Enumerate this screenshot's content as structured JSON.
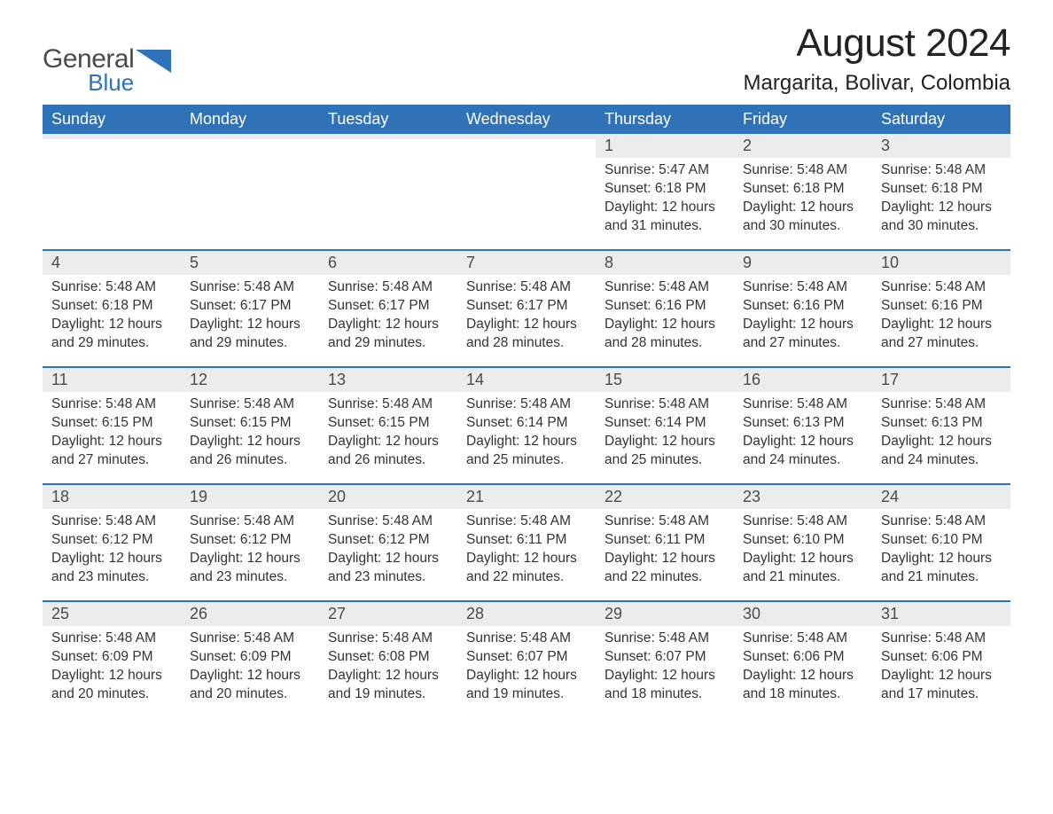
{
  "logo": {
    "general": "General",
    "blue": "Blue",
    "icon_color": "#2f72b7"
  },
  "title": {
    "month": "August 2024",
    "location": "Margarita, Bolivar, Colombia"
  },
  "colors": {
    "header_bg": "#2f72b7",
    "header_text": "#ffffff",
    "daynum_bg": "#ececec",
    "border": "#2f72b7",
    "body_text": "#333333"
  },
  "fonts": {
    "title_size": 44,
    "location_size": 24,
    "header_size": 18,
    "body_size": 15.5
  },
  "day_headers": [
    "Sunday",
    "Monday",
    "Tuesday",
    "Wednesday",
    "Thursday",
    "Friday",
    "Saturday"
  ],
  "weeks": [
    [
      {
        "num": "",
        "sunrise": "",
        "sunset": "",
        "daylight1": "",
        "daylight2": ""
      },
      {
        "num": "",
        "sunrise": "",
        "sunset": "",
        "daylight1": "",
        "daylight2": ""
      },
      {
        "num": "",
        "sunrise": "",
        "sunset": "",
        "daylight1": "",
        "daylight2": ""
      },
      {
        "num": "",
        "sunrise": "",
        "sunset": "",
        "daylight1": "",
        "daylight2": ""
      },
      {
        "num": "1",
        "sunrise": "Sunrise: 5:47 AM",
        "sunset": "Sunset: 6:18 PM",
        "daylight1": "Daylight: 12 hours",
        "daylight2": "and 31 minutes."
      },
      {
        "num": "2",
        "sunrise": "Sunrise: 5:48 AM",
        "sunset": "Sunset: 6:18 PM",
        "daylight1": "Daylight: 12 hours",
        "daylight2": "and 30 minutes."
      },
      {
        "num": "3",
        "sunrise": "Sunrise: 5:48 AM",
        "sunset": "Sunset: 6:18 PM",
        "daylight1": "Daylight: 12 hours",
        "daylight2": "and 30 minutes."
      }
    ],
    [
      {
        "num": "4",
        "sunrise": "Sunrise: 5:48 AM",
        "sunset": "Sunset: 6:18 PM",
        "daylight1": "Daylight: 12 hours",
        "daylight2": "and 29 minutes."
      },
      {
        "num": "5",
        "sunrise": "Sunrise: 5:48 AM",
        "sunset": "Sunset: 6:17 PM",
        "daylight1": "Daylight: 12 hours",
        "daylight2": "and 29 minutes."
      },
      {
        "num": "6",
        "sunrise": "Sunrise: 5:48 AM",
        "sunset": "Sunset: 6:17 PM",
        "daylight1": "Daylight: 12 hours",
        "daylight2": "and 29 minutes."
      },
      {
        "num": "7",
        "sunrise": "Sunrise: 5:48 AM",
        "sunset": "Sunset: 6:17 PM",
        "daylight1": "Daylight: 12 hours",
        "daylight2": "and 28 minutes."
      },
      {
        "num": "8",
        "sunrise": "Sunrise: 5:48 AM",
        "sunset": "Sunset: 6:16 PM",
        "daylight1": "Daylight: 12 hours",
        "daylight2": "and 28 minutes."
      },
      {
        "num": "9",
        "sunrise": "Sunrise: 5:48 AM",
        "sunset": "Sunset: 6:16 PM",
        "daylight1": "Daylight: 12 hours",
        "daylight2": "and 27 minutes."
      },
      {
        "num": "10",
        "sunrise": "Sunrise: 5:48 AM",
        "sunset": "Sunset: 6:16 PM",
        "daylight1": "Daylight: 12 hours",
        "daylight2": "and 27 minutes."
      }
    ],
    [
      {
        "num": "11",
        "sunrise": "Sunrise: 5:48 AM",
        "sunset": "Sunset: 6:15 PM",
        "daylight1": "Daylight: 12 hours",
        "daylight2": "and 27 minutes."
      },
      {
        "num": "12",
        "sunrise": "Sunrise: 5:48 AM",
        "sunset": "Sunset: 6:15 PM",
        "daylight1": "Daylight: 12 hours",
        "daylight2": "and 26 minutes."
      },
      {
        "num": "13",
        "sunrise": "Sunrise: 5:48 AM",
        "sunset": "Sunset: 6:15 PM",
        "daylight1": "Daylight: 12 hours",
        "daylight2": "and 26 minutes."
      },
      {
        "num": "14",
        "sunrise": "Sunrise: 5:48 AM",
        "sunset": "Sunset: 6:14 PM",
        "daylight1": "Daylight: 12 hours",
        "daylight2": "and 25 minutes."
      },
      {
        "num": "15",
        "sunrise": "Sunrise: 5:48 AM",
        "sunset": "Sunset: 6:14 PM",
        "daylight1": "Daylight: 12 hours",
        "daylight2": "and 25 minutes."
      },
      {
        "num": "16",
        "sunrise": "Sunrise: 5:48 AM",
        "sunset": "Sunset: 6:13 PM",
        "daylight1": "Daylight: 12 hours",
        "daylight2": "and 24 minutes."
      },
      {
        "num": "17",
        "sunrise": "Sunrise: 5:48 AM",
        "sunset": "Sunset: 6:13 PM",
        "daylight1": "Daylight: 12 hours",
        "daylight2": "and 24 minutes."
      }
    ],
    [
      {
        "num": "18",
        "sunrise": "Sunrise: 5:48 AM",
        "sunset": "Sunset: 6:12 PM",
        "daylight1": "Daylight: 12 hours",
        "daylight2": "and 23 minutes."
      },
      {
        "num": "19",
        "sunrise": "Sunrise: 5:48 AM",
        "sunset": "Sunset: 6:12 PM",
        "daylight1": "Daylight: 12 hours",
        "daylight2": "and 23 minutes."
      },
      {
        "num": "20",
        "sunrise": "Sunrise: 5:48 AM",
        "sunset": "Sunset: 6:12 PM",
        "daylight1": "Daylight: 12 hours",
        "daylight2": "and 23 minutes."
      },
      {
        "num": "21",
        "sunrise": "Sunrise: 5:48 AM",
        "sunset": "Sunset: 6:11 PM",
        "daylight1": "Daylight: 12 hours",
        "daylight2": "and 22 minutes."
      },
      {
        "num": "22",
        "sunrise": "Sunrise: 5:48 AM",
        "sunset": "Sunset: 6:11 PM",
        "daylight1": "Daylight: 12 hours",
        "daylight2": "and 22 minutes."
      },
      {
        "num": "23",
        "sunrise": "Sunrise: 5:48 AM",
        "sunset": "Sunset: 6:10 PM",
        "daylight1": "Daylight: 12 hours",
        "daylight2": "and 21 minutes."
      },
      {
        "num": "24",
        "sunrise": "Sunrise: 5:48 AM",
        "sunset": "Sunset: 6:10 PM",
        "daylight1": "Daylight: 12 hours",
        "daylight2": "and 21 minutes."
      }
    ],
    [
      {
        "num": "25",
        "sunrise": "Sunrise: 5:48 AM",
        "sunset": "Sunset: 6:09 PM",
        "daylight1": "Daylight: 12 hours",
        "daylight2": "and 20 minutes."
      },
      {
        "num": "26",
        "sunrise": "Sunrise: 5:48 AM",
        "sunset": "Sunset: 6:09 PM",
        "daylight1": "Daylight: 12 hours",
        "daylight2": "and 20 minutes."
      },
      {
        "num": "27",
        "sunrise": "Sunrise: 5:48 AM",
        "sunset": "Sunset: 6:08 PM",
        "daylight1": "Daylight: 12 hours",
        "daylight2": "and 19 minutes."
      },
      {
        "num": "28",
        "sunrise": "Sunrise: 5:48 AM",
        "sunset": "Sunset: 6:07 PM",
        "daylight1": "Daylight: 12 hours",
        "daylight2": "and 19 minutes."
      },
      {
        "num": "29",
        "sunrise": "Sunrise: 5:48 AM",
        "sunset": "Sunset: 6:07 PM",
        "daylight1": "Daylight: 12 hours",
        "daylight2": "and 18 minutes."
      },
      {
        "num": "30",
        "sunrise": "Sunrise: 5:48 AM",
        "sunset": "Sunset: 6:06 PM",
        "daylight1": "Daylight: 12 hours",
        "daylight2": "and 18 minutes."
      },
      {
        "num": "31",
        "sunrise": "Sunrise: 5:48 AM",
        "sunset": "Sunset: 6:06 PM",
        "daylight1": "Daylight: 12 hours",
        "daylight2": "and 17 minutes."
      }
    ]
  ]
}
